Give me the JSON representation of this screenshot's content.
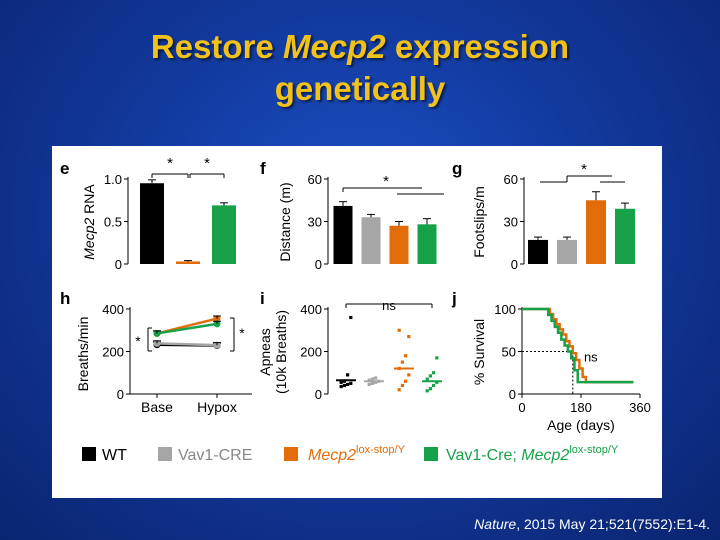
{
  "title": {
    "line1_pre": "Restore ",
    "line1_gene": "Mecp2",
    "line1_post": " expression",
    "line2": "genetically"
  },
  "citation": {
    "journal": "Nature",
    "rest": ", 2015 May 21;521(7552):E1-4."
  },
  "colors": {
    "WT": "#000000",
    "Vav1-CRE": "#a6a6a6",
    "Mecp2lox": "#e36c0a",
    "Vav1Cre_Mecp2lox": "#17a24a"
  },
  "legend": {
    "wt": "WT",
    "vav1": "Vav1-CRE",
    "lox_base": "Mecp2",
    "lox_sup": "lox-stop/Y",
    "vav1cre_prefix": "Vav1-Cre; ",
    "vav1cre_gene": "Mecp2",
    "vav1cre_sup": "lox-stop/Y"
  },
  "chart_data": [
    {
      "panel": "e",
      "type": "bar",
      "ylabel_gene": "Mecp2",
      "ylabel_rest": " RNA",
      "yticks": [
        "1.0",
        "0.5",
        "0"
      ],
      "ylim": [
        0,
        1.0
      ],
      "series": [
        {
          "name": "WT",
          "value": 0.95,
          "error": 0.04
        },
        {
          "name": "Mecp2lox",
          "value": 0.03,
          "error": 0.01
        },
        {
          "name": "Vav1Cre_Mecp2lox",
          "value": 0.69,
          "error": 0.03
        }
      ],
      "significance": [
        "*",
        "*"
      ]
    },
    {
      "panel": "f",
      "type": "bar",
      "ylabel": "Distance (m)",
      "yticks": [
        "60",
        "30",
        "0"
      ],
      "ylim": [
        0,
        60
      ],
      "series": [
        {
          "name": "WT",
          "value": 41,
          "error": 3
        },
        {
          "name": "Vav1-CRE",
          "value": 33,
          "error": 2
        },
        {
          "name": "Mecp2lox",
          "value": 27,
          "error": 3
        },
        {
          "name": "Vav1Cre_Mecp2lox",
          "value": 28,
          "error": 4
        }
      ],
      "significance": [
        "*"
      ]
    },
    {
      "panel": "g",
      "type": "bar",
      "ylabel": "Footslips/m",
      "yticks": [
        "60",
        "30",
        "0"
      ],
      "ylim": [
        0,
        60
      ],
      "series": [
        {
          "name": "WT",
          "value": 17,
          "error": 2
        },
        {
          "name": "Vav1-CRE",
          "value": 17,
          "error": 2
        },
        {
          "name": "Mecp2lox",
          "value": 45,
          "error": 6
        },
        {
          "name": "Vav1Cre_Mecp2lox",
          "value": 39,
          "error": 4
        }
      ],
      "significance": [
        "*"
      ]
    },
    {
      "panel": "h",
      "type": "line",
      "ylabel": "Breaths/min",
      "categories": [
        "Base",
        "Hypox"
      ],
      "yticks": [
        "400",
        "200",
        "0"
      ],
      "ylim": [
        0,
        400
      ],
      "series": [
        {
          "name": "WT",
          "values": [
            232,
            228
          ]
        },
        {
          "name": "Vav1-CRE",
          "values": [
            238,
            230
          ]
        },
        {
          "name": "Mecp2lox",
          "values": [
            285,
            355
          ]
        },
        {
          "name": "Vav1Cre_Mecp2lox",
          "values": [
            285,
            330
          ]
        }
      ],
      "significance": [
        "*",
        "*"
      ]
    },
    {
      "panel": "i",
      "type": "scatter",
      "ylabel_line1": "Apneas",
      "ylabel_line2": "(10k Breaths)",
      "yticks": [
        "400",
        "200",
        "0"
      ],
      "ylim": [
        0,
        400
      ],
      "groups": [
        {
          "name": "WT",
          "points": [
            35,
            40,
            45,
            50,
            55,
            60,
            90,
            360
          ],
          "mean": 65
        },
        {
          "name": "Vav1-CRE",
          "points": [
            45,
            50,
            55,
            60,
            65,
            70,
            75
          ],
          "mean": 60
        },
        {
          "name": "Mecp2lox",
          "points": [
            20,
            40,
            60,
            90,
            120,
            150,
            180,
            270,
            300
          ],
          "mean": 120
        },
        {
          "name": "Vav1Cre_Mecp2lox",
          "points": [
            15,
            25,
            40,
            55,
            70,
            85,
            100,
            170
          ],
          "mean": 60
        }
      ],
      "significance": [
        "ns"
      ]
    },
    {
      "panel": "j",
      "type": "line",
      "ylabel": "% Survival",
      "xlabel": "Age (days)",
      "xticks": [
        "0",
        "180",
        "360"
      ],
      "xlim": [
        0,
        360
      ],
      "yticks": [
        "100",
        "50",
        "0"
      ],
      "ylim": [
        0,
        100
      ],
      "median_days": 155,
      "series": [
        {
          "name": "Mecp2lox",
          "x": [
            0,
            70,
            85,
            95,
            105,
            115,
            125,
            135,
            145,
            155,
            165,
            175,
            185,
            195,
            205,
            340
          ],
          "y": [
            100,
            100,
            94,
            88,
            82,
            76,
            70,
            62,
            56,
            48,
            40,
            30,
            20,
            14,
            14,
            14
          ]
        },
        {
          "name": "Vav1Cre_Mecp2lox",
          "x": [
            0,
            65,
            80,
            90,
            100,
            110,
            120,
            130,
            140,
            150,
            160,
            170,
            340
          ],
          "y": [
            100,
            100,
            93,
            86,
            79,
            72,
            64,
            57,
            50,
            42,
            28,
            14,
            14
          ]
        }
      ],
      "significance": [
        "ns"
      ]
    }
  ]
}
